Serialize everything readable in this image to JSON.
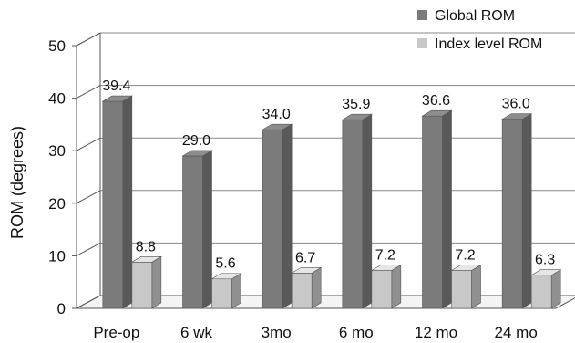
{
  "chart_data": {
    "type": "bar",
    "categories": [
      "Pre-op",
      "6 wk",
      "3mo",
      "6 mo",
      "12 mo",
      "24 mo"
    ],
    "series": [
      {
        "name": "Global ROM",
        "values": [
          39.4,
          29.0,
          34.0,
          35.9,
          36.6,
          36.0
        ],
        "labels": [
          "39.4",
          "29.0",
          "34.0",
          "35.9",
          "36.6",
          "36.0"
        ],
        "color": "#7b7b7b"
      },
      {
        "name": "Index level ROM",
        "values": [
          8.8,
          5.6,
          6.7,
          7.2,
          7.2,
          6.3
        ],
        "labels": [
          "8.8",
          "5.6",
          "6.7",
          "7.2",
          "7.2",
          "6.3"
        ],
        "color": "#c8c8c8"
      }
    ],
    "ylabel": "ROM (degrees)",
    "ylim": [
      0,
      50
    ],
    "yticks": [
      "0",
      "10",
      "20",
      "30",
      "40",
      "50"
    ],
    "grid": true,
    "legend": "top-right",
    "style": "3d-bar"
  }
}
